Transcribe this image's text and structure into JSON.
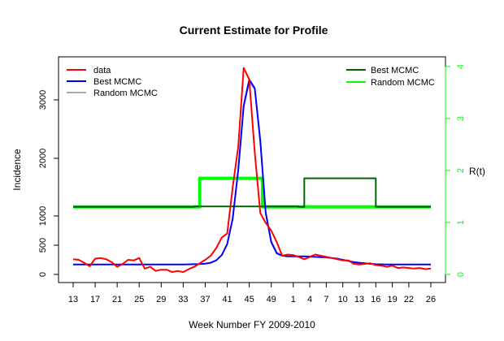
{
  "chart_data": {
    "type": "line",
    "title": "Current Estimate for Profile",
    "xlabel": "Week Number FY 2009-2010",
    "ylabel": "Incidence",
    "ylabel_right": "R(t)",
    "x_tick_labels": [
      "13",
      "17",
      "21",
      "25",
      "29",
      "33",
      "37",
      "41",
      "45",
      "49",
      "1",
      "4",
      "7",
      "10",
      "13",
      "16",
      "19",
      "22",
      "26"
    ],
    "x_tick_positions": [
      1,
      5,
      9,
      13,
      17,
      21,
      25,
      29,
      33,
      37,
      41,
      44,
      47,
      50,
      53,
      56,
      59,
      62,
      66
    ],
    "xlim": [
      1,
      66
    ],
    "ylim": [
      -50,
      3650
    ],
    "y_ticks": [
      0,
      500,
      1000,
      2000,
      3000
    ],
    "ylim_right": [
      -0.05,
      4.05
    ],
    "y_ticks_right": [
      0,
      1,
      2,
      3,
      4
    ],
    "right_axis_color": "#00ff00",
    "legend_left": [
      {
        "label": "data",
        "color": "#ff0000"
      },
      {
        "label": "Best MCMC",
        "color": "#0000ff"
      },
      {
        "label": "Random MCMC",
        "color": "#aaaaaa"
      }
    ],
    "legend_right": [
      {
        "label": "Best MCMC",
        "color": "#006400"
      },
      {
        "label": "Random MCMC",
        "color": "#00ff00"
      }
    ],
    "series": [
      {
        "name": "data",
        "axis": "left",
        "color": "#ff0000",
        "x": [
          1,
          2,
          3,
          4,
          5,
          6,
          7,
          8,
          9,
          10,
          11,
          12,
          13,
          14,
          15,
          16,
          17,
          18,
          19,
          20,
          21,
          22,
          23,
          24,
          25,
          26,
          27,
          28,
          29,
          30,
          31,
          32,
          33,
          34,
          35,
          36,
          37,
          38,
          39,
          40,
          41,
          42,
          43,
          44,
          45,
          46,
          47,
          48,
          49,
          50,
          51,
          52,
          53,
          54,
          55,
          56,
          57,
          58,
          59,
          60,
          61,
          62,
          63,
          64,
          65,
          66
        ],
        "values": [
          260,
          250,
          200,
          140,
          270,
          280,
          260,
          210,
          130,
          180,
          250,
          240,
          280,
          100,
          130,
          60,
          80,
          80,
          40,
          60,
          40,
          90,
          130,
          190,
          250,
          320,
          450,
          630,
          700,
          1500,
          2200,
          3550,
          3350,
          2100,
          1050,
          880,
          750,
          550,
          320,
          340,
          330,
          300,
          260,
          300,
          340,
          320,
          300,
          280,
          260,
          240,
          240,
          180,
          170,
          180,
          190,
          160,
          150,
          130,
          150,
          110,
          120,
          110,
          100,
          110,
          90,
          100
        ]
      },
      {
        "name": "Best MCMC",
        "axis": "left",
        "color": "#0000ff",
        "x": [
          1,
          2,
          3,
          4,
          5,
          6,
          7,
          8,
          9,
          10,
          11,
          12,
          13,
          14,
          15,
          16,
          17,
          18,
          19,
          20,
          21,
          22,
          23,
          24,
          25,
          26,
          27,
          28,
          29,
          30,
          31,
          32,
          33,
          34,
          35,
          36,
          37,
          38,
          39,
          40,
          41,
          42,
          43,
          44,
          45,
          46,
          47,
          48,
          49,
          50,
          51,
          52,
          53,
          54,
          55,
          56,
          57,
          58,
          59,
          60,
          61,
          62,
          63,
          64,
          65,
          66
        ],
        "values": [
          170,
          170,
          170,
          170,
          170,
          170,
          170,
          170,
          170,
          170,
          170,
          170,
          170,
          170,
          170,
          170,
          170,
          170,
          170,
          170,
          170,
          172,
          175,
          178,
          185,
          200,
          240,
          330,
          520,
          960,
          1800,
          2900,
          3350,
          3200,
          2300,
          1050,
          550,
          360,
          320,
          310,
          310,
          310,
          310,
          305,
          300,
          295,
          290,
          280,
          270,
          250,
          230,
          210,
          200,
          190,
          180,
          175,
          172,
          170,
          170,
          170,
          170,
          170,
          170,
          170,
          170,
          170
        ]
      },
      {
        "name": "Random MCMC",
        "axis": "left",
        "color": "#aaaaaa",
        "x": [
          1,
          2,
          3,
          4,
          5,
          6,
          7,
          8,
          9,
          10,
          11,
          12,
          13,
          14,
          15,
          16,
          17,
          18,
          19,
          20,
          21,
          22,
          23,
          24,
          25,
          26,
          27,
          28,
          29,
          30,
          31,
          32,
          33,
          34,
          35,
          36,
          37,
          38,
          39,
          40,
          41,
          42,
          43,
          44,
          45,
          46,
          47,
          48,
          49,
          50,
          51,
          52,
          53,
          54,
          55,
          56,
          57,
          58,
          59,
          60,
          61,
          62,
          63,
          64,
          65,
          66
        ],
        "values": [
          170,
          170,
          170,
          170,
          170,
          170,
          170,
          170,
          170,
          170,
          170,
          170,
          170,
          170,
          170,
          170,
          170,
          170,
          170,
          170,
          170,
          172,
          175,
          178,
          185,
          200,
          240,
          330,
          520,
          950,
          1780,
          2870,
          3300,
          3180,
          2320,
          1080,
          580,
          380,
          330,
          310,
          310,
          310,
          310,
          305,
          300,
          295,
          290,
          280,
          270,
          250,
          230,
          210,
          200,
          190,
          180,
          175,
          172,
          170,
          170,
          170,
          170,
          170,
          170,
          170,
          170,
          170
        ]
      },
      {
        "name": "Best MCMC",
        "axis": "right",
        "color": "#006400",
        "x": [
          1,
          23,
          23,
          42,
          42,
          43,
          43,
          45.5,
          45.5,
          56,
          56,
          58,
          58,
          66
        ],
        "values": [
          1.3,
          1.3,
          1.31,
          1.31,
          1.3,
          1.3,
          1.85,
          1.85,
          1.85,
          1.85,
          1.3,
          1.3,
          1.3,
          1.3
        ]
      },
      {
        "name": "Random MCMC",
        "axis": "right",
        "color": "#00ff00",
        "x": [
          1,
          23,
          24,
          24,
          34,
          34,
          35,
          35,
          35.4,
          35.4,
          36,
          36,
          41,
          41,
          66
        ],
        "values": [
          1.3,
          1.3,
          1.3,
          1.85,
          1.85,
          1.85,
          1.85,
          1.85,
          1.85,
          1.3,
          1.3,
          1.3,
          1.3,
          1.3,
          1.3
        ]
      }
    ]
  }
}
